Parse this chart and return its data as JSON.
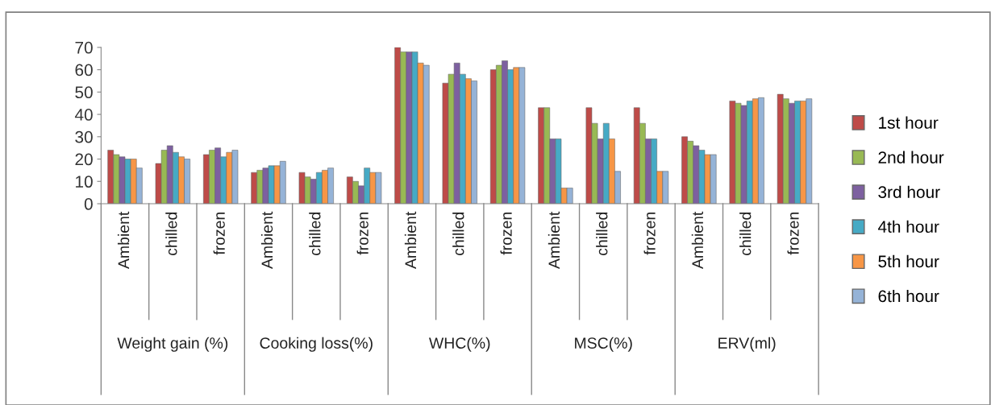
{
  "chart_data": {
    "type": "bar",
    "categories": [
      "Ambient",
      "chilled",
      "frozen",
      "Ambient",
      "chilled",
      "frozen",
      "Ambient",
      "chilled",
      "frozen",
      "Ambient",
      "chilled",
      "frozen",
      "Ambient",
      "chilled",
      "frozen"
    ],
    "annotations": [
      "Weight gain (%)",
      "Cooking loss(%)",
      "WHC(%)",
      "MSC(%)",
      "ERV(ml)"
    ],
    "series": [
      {
        "name": "1st hour",
        "color": "#be4b48",
        "values": [
          24,
          18,
          22,
          14,
          14,
          12,
          70,
          54,
          60,
          43,
          43,
          43,
          30,
          46,
          49
        ]
      },
      {
        "name": "2nd hour",
        "color": "#98b954",
        "values": [
          22,
          24,
          24,
          15,
          12,
          10,
          68,
          58,
          62,
          43,
          36,
          36,
          28,
          45,
          47
        ]
      },
      {
        "name": "3rd hour",
        "color": "#7d60a0",
        "values": [
          21,
          26,
          25,
          16,
          11,
          8,
          68,
          63,
          64,
          29,
          29,
          29,
          26,
          44,
          45
        ]
      },
      {
        "name": "4th hour",
        "color": "#46aac5",
        "values": [
          20,
          23,
          21,
          17,
          14,
          16,
          68,
          58,
          60,
          29,
          36,
          29,
          24,
          46,
          46
        ]
      },
      {
        "name": "5th hour",
        "color": "#f79646",
        "values": [
          20,
          21,
          23,
          17,
          15,
          14,
          63,
          56,
          61,
          7,
          29,
          14.5,
          22,
          47,
          46
        ]
      },
      {
        "name": "6th hour",
        "color": "#95b3d7",
        "values": [
          16,
          20,
          24,
          19,
          16,
          14,
          62,
          55,
          61,
          7,
          14.5,
          14.5,
          22,
          47.5,
          47
        ]
      }
    ],
    "ylim": [
      0,
      70
    ],
    "yticks": [
      0,
      10,
      20,
      30,
      40,
      50,
      60,
      70
    ],
    "grid": false,
    "legend": "right"
  }
}
